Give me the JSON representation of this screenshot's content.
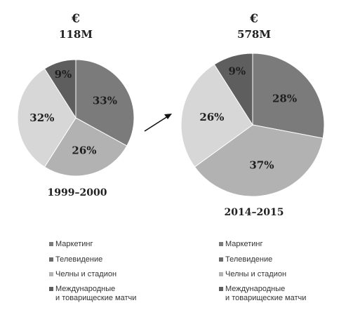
{
  "chart_data": [
    {
      "type": "pie",
      "currency": "€",
      "total": "118M",
      "period": "1999–2000",
      "categories": [
        "Маркетинг",
        "Телевидение",
        "Челны и стадион",
        "Международные\nи товарищеские матчи"
      ],
      "values": [
        33,
        26,
        32,
        9
      ],
      "labels": [
        "33%",
        "26%",
        "32%",
        "9%"
      ],
      "colors": [
        "#7b7b7b",
        "#b2b2b2",
        "#d7d7d7",
        "#5e5e5e"
      ]
    },
    {
      "type": "pie",
      "currency": "€",
      "total": "578M",
      "period": "2014–2015",
      "categories": [
        "Маркетинг",
        "Телевидение",
        "Челны и стадион",
        "Международные\nи товарищеские матчи"
      ],
      "values": [
        28,
        37,
        26,
        9
      ],
      "labels": [
        "28%",
        "37%",
        "26%",
        "9%"
      ],
      "colors": [
        "#7b7b7b",
        "#b2b2b2",
        "#d7d7d7",
        "#5e5e5e"
      ]
    }
  ],
  "legend": {
    "items": [
      {
        "label": "Маркетинг",
        "color": "#7b7b7b"
      },
      {
        "label": "Телевидение",
        "color": "#6a6a6a"
      },
      {
        "label": "Челны и стадион",
        "color": "#b2b2b2"
      },
      {
        "label_line1": "Международные",
        "label_line2": "и товарищеские матчи",
        "color": "#5e5e5e"
      }
    ]
  },
  "arrow": {
    "icon": "arrow-right-up-icon"
  }
}
